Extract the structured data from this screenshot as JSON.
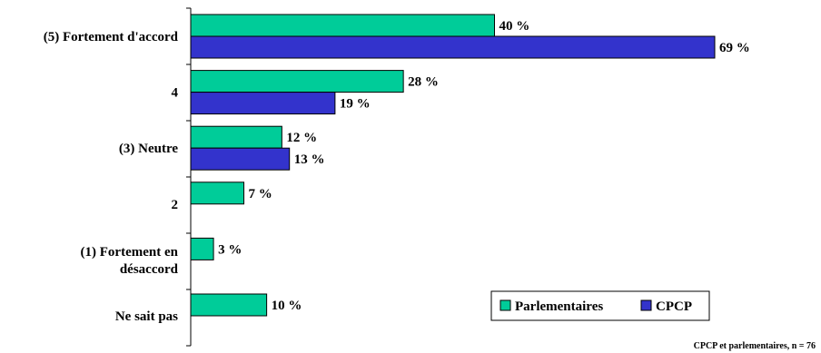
{
  "chart_data": {
    "type": "bar",
    "orientation": "horizontal",
    "categories": [
      "(5) Fortement d'accord",
      "4",
      "(3) Neutre",
      "2",
      "(1) Fortement en désaccord",
      "Ne sait pas"
    ],
    "category_lines": [
      [
        "(5) Fortement d'accord"
      ],
      [
        "4"
      ],
      [
        "(3) Neutre"
      ],
      [
        "2"
      ],
      [
        "(1) Fortement en",
        "désaccord"
      ],
      [
        "Ne sait pas"
      ]
    ],
    "series": [
      {
        "name": "Parlementaires",
        "color": "#00cc99",
        "values": [
          40,
          28,
          12,
          7,
          3,
          10
        ]
      },
      {
        "name": "CPCP",
        "color": "#3333cc",
        "values": [
          69,
          19,
          13,
          null,
          null,
          null
        ]
      }
    ],
    "value_labels": {
      "Parlementaires": [
        "40 %",
        "28 %",
        "12 %",
        "7 %",
        "3 %",
        "10 %"
      ],
      "CPCP": [
        "69 %",
        "19 %",
        "13 %",
        null,
        null,
        null
      ]
    },
    "unit": "%",
    "xlim": [
      0,
      70
    ],
    "grid": false,
    "legend_position": "bottom-right"
  },
  "footnote": "CPCP et parlementaires, n = 76"
}
